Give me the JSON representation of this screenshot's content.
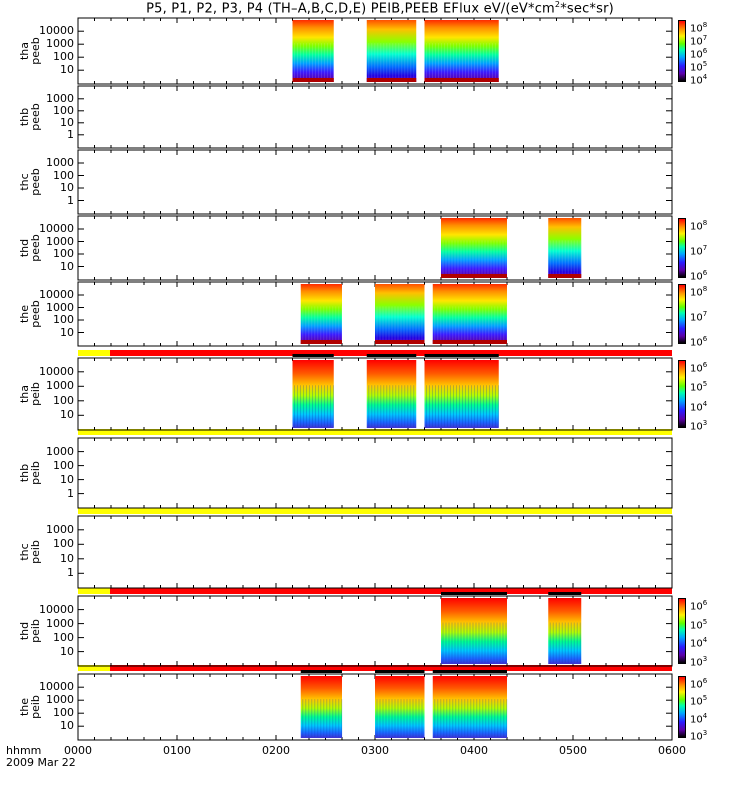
{
  "title_prefix": "P5, P1, P2, P3, P4 (TH–A,B,C,D,E) PEIB,PEEB EFlux eV/(eV*cm",
  "title_sup": "2",
  "title_suffix": "*sec*sr)",
  "x_axis": {
    "label": "hhmm",
    "date": "2009 Mar 22",
    "ticks": [
      "0000",
      "0100",
      "0200",
      "0300",
      "0400",
      "0500",
      "0600"
    ]
  },
  "colors": {
    "bar_yellow": "#ffff00",
    "bar_red": "#ff0000"
  },
  "chart_data": [
    {
      "type": "heatmap",
      "probe": "tha",
      "product": "peeb",
      "ylabel": "tha\npeeb",
      "yticks": [
        "10000",
        "1000",
        "100",
        "10"
      ],
      "ylog": true,
      "ylim": [
        7,
        30000
      ],
      "intervals_hhmm": [
        [
          "0210",
          "0235"
        ],
        [
          "0255",
          "0325"
        ],
        [
          "0330",
          "0415"
        ]
      ],
      "colorbar": {
        "ticks": [
          "10^8",
          "10^7",
          "10^6",
          "10^5",
          "10^4"
        ]
      }
    },
    {
      "type": "heatmap",
      "probe": "thb",
      "product": "peeb",
      "ylabel": "thb\npeeb",
      "yticks": [
        "1000",
        "100",
        "10",
        "1"
      ],
      "ylog": true,
      "ylim": [
        1,
        1500
      ],
      "intervals_hhmm": []
    },
    {
      "type": "heatmap",
      "probe": "thc",
      "product": "peeb",
      "ylabel": "thc\npeeb",
      "yticks": [
        "1000",
        "100",
        "10",
        "1"
      ],
      "ylog": true,
      "ylim": [
        1,
        1500
      ],
      "intervals_hhmm": []
    },
    {
      "type": "heatmap",
      "probe": "thd",
      "product": "peeb",
      "ylabel": "thd\npeeb",
      "yticks": [
        "10000",
        "1000",
        "100",
        "10"
      ],
      "ylog": true,
      "ylim": [
        7,
        30000
      ],
      "intervals_hhmm": [
        [
          "0340",
          "0420"
        ],
        [
          "0445",
          "0505"
        ]
      ],
      "colorbar": {
        "ticks": [
          "10^8",
          "10^7",
          "10^6"
        ]
      }
    },
    {
      "type": "heatmap",
      "probe": "the",
      "product": "peeb",
      "ylabel": "the\npeeb",
      "yticks": [
        "10000",
        "1000",
        "100",
        "10"
      ],
      "ylog": true,
      "ylim": [
        7,
        30000
      ],
      "intervals_hhmm": [
        [
          "0215",
          "0240"
        ],
        [
          "0300",
          "0330"
        ],
        [
          "0335",
          "0420"
        ]
      ],
      "colorbar": {
        "ticks": [
          "10^8",
          "10^7",
          "10^6"
        ]
      }
    },
    {
      "type": "heatmap",
      "probe": "tha",
      "product": "peib",
      "ylabel": "tha\npeib",
      "yticks": [
        "10000",
        "1000",
        "100",
        "10"
      ],
      "ylog": true,
      "ylim": [
        7,
        30000
      ],
      "intervals_hhmm": [
        [
          "0210",
          "0235"
        ],
        [
          "0255",
          "0325"
        ],
        [
          "0330",
          "0415"
        ]
      ],
      "colorbar": {
        "ticks": [
          "10^6",
          "10^5",
          "10^4",
          "10^3"
        ]
      }
    },
    {
      "type": "heatmap",
      "probe": "thb",
      "product": "peib",
      "ylabel": "thb\npeib",
      "yticks": [
        "1000",
        "100",
        "10",
        "1"
      ],
      "ylog": true,
      "ylim": [
        1,
        1500
      ],
      "intervals_hhmm": []
    },
    {
      "type": "heatmap",
      "probe": "thc",
      "product": "peib",
      "ylabel": "thc\npeib",
      "yticks": [
        "1000",
        "100",
        "10",
        "1"
      ],
      "ylog": true,
      "ylim": [
        1,
        1500
      ],
      "intervals_hhmm": []
    },
    {
      "type": "heatmap",
      "probe": "thd",
      "product": "peib",
      "ylabel": "thd\npeib",
      "yticks": [
        "10000",
        "1000",
        "100",
        "10"
      ],
      "ylog": true,
      "ylim": [
        7,
        30000
      ],
      "intervals_hhmm": [
        [
          "0340",
          "0420"
        ],
        [
          "0445",
          "0505"
        ]
      ],
      "colorbar": {
        "ticks": [
          "10^6",
          "10^5",
          "10^4",
          "10^3"
        ]
      }
    },
    {
      "type": "heatmap",
      "probe": "the",
      "product": "peib",
      "ylabel": "the\npeib",
      "yticks": [
        "10000",
        "1000",
        "100",
        "10"
      ],
      "ylog": true,
      "ylim": [
        7,
        30000
      ],
      "intervals_hhmm": [
        [
          "0215",
          "0240"
        ],
        [
          "0300",
          "0330"
        ],
        [
          "0335",
          "0420"
        ]
      ],
      "colorbar": {
        "ticks": [
          "10^6",
          "10^5",
          "10^4",
          "10^3"
        ]
      }
    }
  ]
}
